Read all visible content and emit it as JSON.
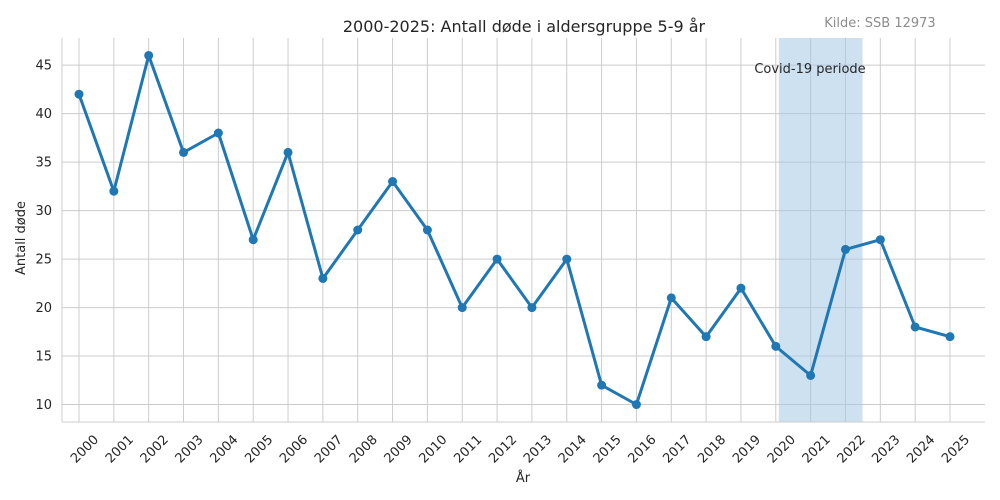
{
  "chart_data": {
    "type": "line",
    "title": "2000-2025: Antall døde i aldersgruppe 5-9 år",
    "source": "Kilde: SSB 12973",
    "xlabel": "År",
    "ylabel": "Antall døde",
    "x": [
      "2000",
      "2001",
      "2002",
      "2003",
      "2004",
      "2005",
      "2006",
      "2007",
      "2008",
      "2009",
      "2010",
      "2011",
      "2012",
      "2013",
      "2014",
      "2015",
      "2016",
      "2017",
      "2018",
      "2019",
      "2020",
      "2021",
      "2022",
      "2023",
      "2024",
      "2025"
    ],
    "series": [
      {
        "values": [
          42,
          32,
          46,
          36,
          38,
          27,
          36,
          23,
          28,
          33,
          28,
          20,
          25,
          20,
          25,
          12,
          10,
          21,
          17,
          22,
          16,
          13,
          26,
          27,
          18,
          17
        ]
      }
    ],
    "ylim": [
      8.2,
      47.8
    ],
    "yticks": [
      10,
      15,
      20,
      25,
      30,
      35,
      40,
      45
    ],
    "grid": true,
    "line_color": "#1f77b4",
    "shade": {
      "label": "Covid-19 periode",
      "start": "2020",
      "end": "2022",
      "color": "#a6c8e6"
    }
  }
}
